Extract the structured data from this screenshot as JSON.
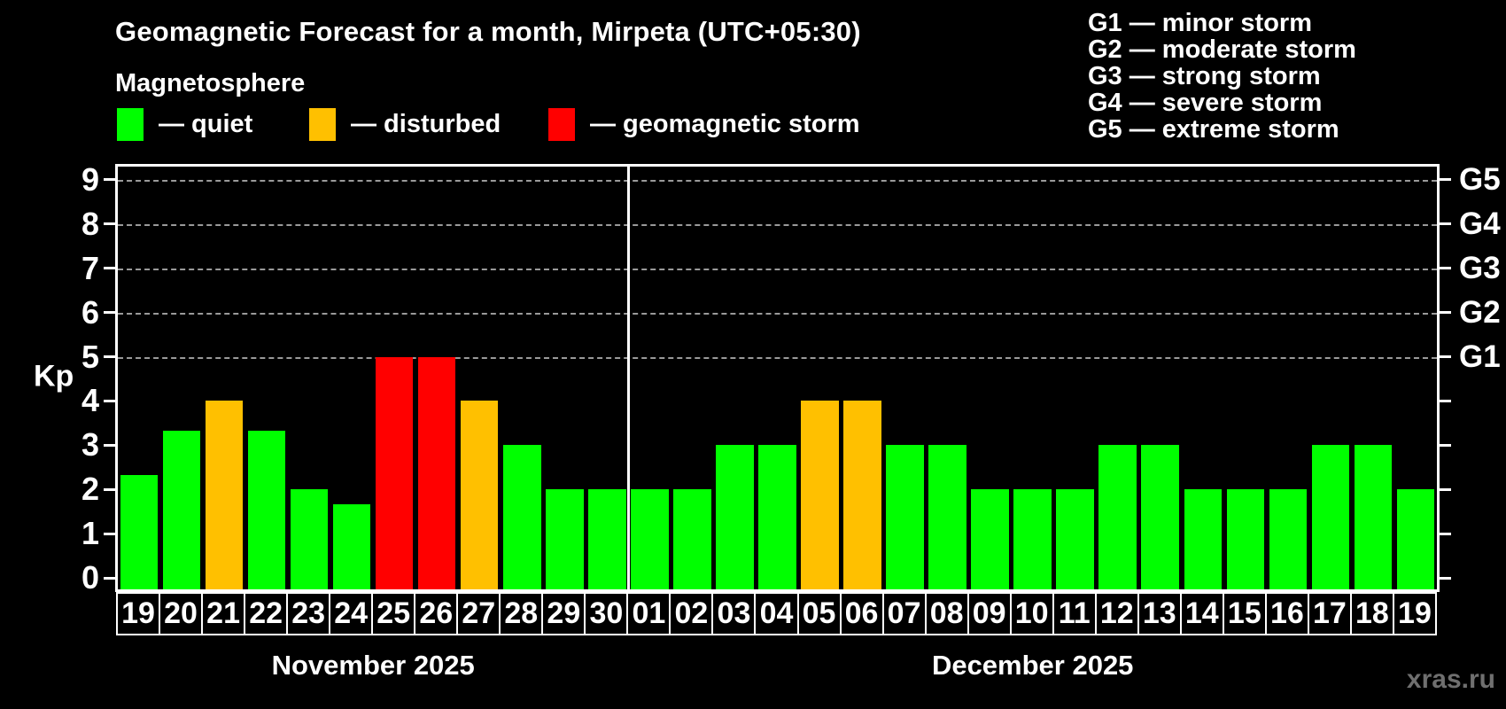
{
  "title": "Geomagnetic Forecast for a month, Mirpeta (UTC+05:30)",
  "subtitle": "Magnetosphere",
  "legend": {
    "items": [
      {
        "key": "quiet",
        "label": "— quiet",
        "color": "#00ff00"
      },
      {
        "key": "disturbed",
        "label": "— disturbed",
        "color": "#ffc000"
      },
      {
        "key": "storm",
        "label": "— geomagnetic storm",
        "color": "#ff0000"
      }
    ]
  },
  "g_legend": {
    "lines": [
      "G1 — minor storm",
      "G2 — moderate storm",
      "G3 — strong storm",
      "G4 — severe storm",
      "G5 — extreme storm"
    ]
  },
  "watermark": "xras.ru",
  "chart_data": {
    "type": "bar",
    "title": "Geomagnetic Forecast for a month, Mirpeta (UTC+05:30)",
    "xlabel": "",
    "ylabel": "Kp",
    "ylim": [
      0,
      9.35
    ],
    "yticks": [
      0,
      1,
      2,
      3,
      4,
      5,
      6,
      7,
      8,
      9
    ],
    "grid_dashed_at": [
      5,
      6,
      7,
      8,
      9
    ],
    "right_axis_labels": [
      {
        "label": "G1",
        "kp": 5
      },
      {
        "label": "G2",
        "kp": 6
      },
      {
        "label": "G3",
        "kp": 7
      },
      {
        "label": "G4",
        "kp": 8
      },
      {
        "label": "G5",
        "kp": 9
      }
    ],
    "color_palette": {
      "quiet": "#00ff00",
      "disturbed": "#ffc000",
      "storm": "#ff0000"
    },
    "legend_position": "top",
    "months": [
      {
        "label": "November 2025",
        "days": [
          "19",
          "20",
          "21",
          "22",
          "23",
          "24",
          "25",
          "26",
          "27",
          "28",
          "29",
          "30"
        ],
        "values": [
          2.33,
          3.33,
          4,
          3.33,
          2,
          1.67,
          5,
          5,
          4,
          3,
          2,
          2
        ],
        "states": [
          "quiet",
          "quiet",
          "disturbed",
          "quiet",
          "quiet",
          "quiet",
          "storm",
          "storm",
          "disturbed",
          "quiet",
          "quiet",
          "quiet"
        ]
      },
      {
        "label": "December 2025",
        "days": [
          "01",
          "02",
          "03",
          "04",
          "05",
          "06",
          "07",
          "08",
          "09",
          "10",
          "11",
          "12",
          "13",
          "14",
          "15",
          "16",
          "17",
          "18",
          "19"
        ],
        "values": [
          2,
          2,
          3,
          3,
          4,
          4,
          3,
          3,
          2,
          2,
          2,
          3,
          3,
          2,
          2,
          2,
          3,
          3,
          2
        ],
        "states": [
          "quiet",
          "quiet",
          "quiet",
          "quiet",
          "disturbed",
          "disturbed",
          "quiet",
          "quiet",
          "quiet",
          "quiet",
          "quiet",
          "quiet",
          "quiet",
          "quiet",
          "quiet",
          "quiet",
          "quiet",
          "quiet",
          "quiet"
        ]
      }
    ]
  }
}
